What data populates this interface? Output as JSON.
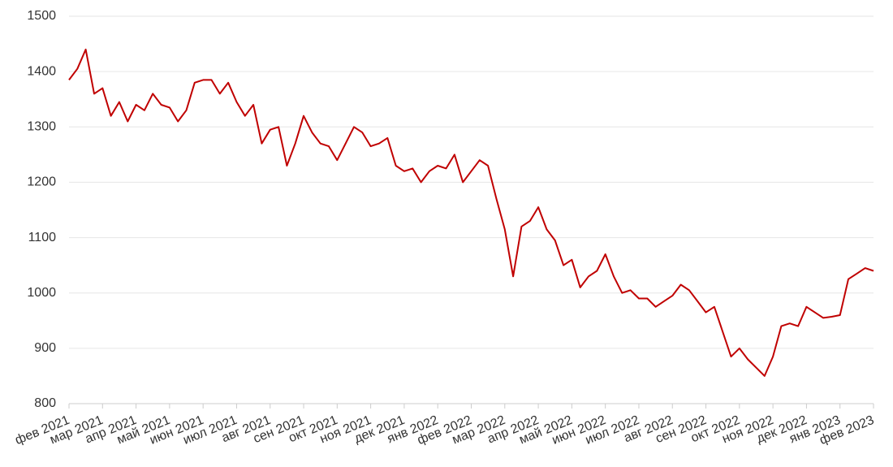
{
  "chart_data": {
    "type": "line",
    "categories": [
      "фев 2021",
      null,
      null,
      null,
      "мар 2021",
      null,
      null,
      null,
      "апр 2021",
      null,
      null,
      null,
      "май 2021",
      null,
      null,
      null,
      "июн 2021",
      null,
      null,
      null,
      "июл 2021",
      null,
      null,
      null,
      "авг 2021",
      null,
      null,
      null,
      "сен 2021",
      null,
      null,
      null,
      "окт 2021",
      null,
      null,
      null,
      "ноя 2021",
      null,
      null,
      null,
      "дек 2021",
      null,
      null,
      null,
      "янв 2022",
      null,
      null,
      null,
      "фев 2022",
      null,
      null,
      null,
      "мар 2022",
      null,
      null,
      null,
      "апр 2022",
      null,
      null,
      null,
      "май 2022",
      null,
      null,
      null,
      "июн 2022",
      null,
      null,
      null,
      "июл 2022",
      null,
      null,
      null,
      "авг 2022",
      null,
      null,
      null,
      "сен 2022",
      null,
      null,
      null,
      "окт 2022",
      null,
      null,
      null,
      "ноя 2022",
      null,
      null,
      null,
      "дек 2022",
      null,
      null,
      null,
      "янв 2023",
      null,
      null,
      null,
      "фев 2023"
    ],
    "values": [
      1385,
      1405,
      1440,
      1360,
      1370,
      1320,
      1345,
      1310,
      1340,
      1330,
      1360,
      1340,
      1335,
      1310,
      1330,
      1380,
      1385,
      1385,
      1360,
      1380,
      1345,
      1320,
      1340,
      1270,
      1295,
      1300,
      1230,
      1270,
      1320,
      1290,
      1270,
      1265,
      1240,
      1270,
      1300,
      1290,
      1265,
      1270,
      1280,
      1230,
      1220,
      1225,
      1200,
      1220,
      1230,
      1225,
      1250,
      1200,
      1220,
      1240,
      1230,
      1170,
      1115,
      1030,
      1120,
      1130,
      1155,
      1115,
      1095,
      1050,
      1060,
      1010,
      1030,
      1040,
      1070,
      1030,
      1000,
      1005,
      990,
      990,
      975,
      985,
      995,
      1015,
      1005,
      985,
      965,
      975,
      930,
      885,
      900,
      880,
      865,
      850,
      885,
      940,
      945,
      940,
      975,
      965,
      955,
      957,
      960,
      1025,
      1035,
      1045,
      1040
    ],
    "color": "#c00000",
    "ylim": [
      800,
      1500
    ],
    "yticks": [
      800,
      900,
      1000,
      1100,
      1200,
      1300,
      1400,
      1500
    ],
    "grid": true
  }
}
